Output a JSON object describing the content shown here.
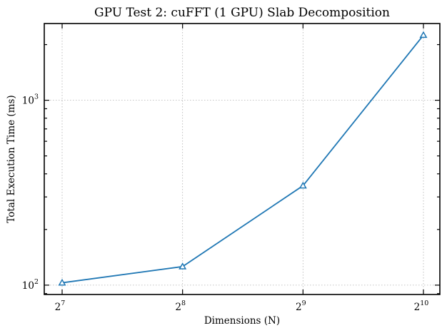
{
  "chart_data": {
    "type": "line",
    "title": "GPU Test 2: cuFFT (1 GPU) Slab Decomposition",
    "xlabel": "Dimensions (N)",
    "ylabel": "Total Execution Time (ms)",
    "x_scale": "log2",
    "y_scale": "log",
    "x": [
      128,
      256,
      512,
      1024
    ],
    "x_ticks": [
      {
        "value": 128,
        "base": "2",
        "exp": "7"
      },
      {
        "value": 256,
        "base": "2",
        "exp": "8"
      },
      {
        "value": 512,
        "base": "2",
        "exp": "9"
      },
      {
        "value": 1024,
        "base": "2",
        "exp": "10"
      }
    ],
    "y_ticks": [
      {
        "value": 100,
        "base": "10",
        "exp": "2"
      },
      {
        "value": 1000,
        "base": "10",
        "exp": "3"
      }
    ],
    "ylim": [
      89,
      2600
    ],
    "grid": true,
    "series": [
      {
        "values": [
          103,
          126,
          345,
          2250
        ],
        "color": "#1f77b4",
        "marker": "triangle"
      }
    ]
  }
}
